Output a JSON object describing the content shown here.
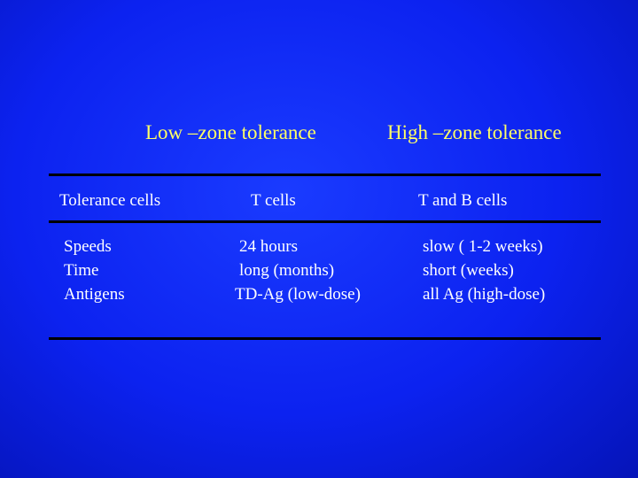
{
  "table": {
    "headers": [
      "Low –zone tolerance",
      "High –zone tolerance"
    ],
    "top_row": [
      "Tolerance cells",
      "T cells",
      "T and B cells"
    ],
    "rows": [
      [
        "Speeds",
        "24 hours",
        "slow ( 1-2 weeks)"
      ],
      [
        "Time",
        "long (months)",
        "short (weeks)"
      ],
      [
        "Antigens",
        "TD-Ag (low-dose)",
        "all Ag (high-dose)"
      ]
    ]
  }
}
